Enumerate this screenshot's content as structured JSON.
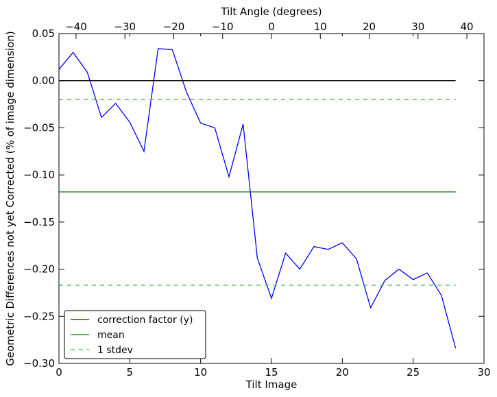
{
  "chart_data": {
    "type": "line",
    "xlabel": "Tilt Image",
    "ylabel": "Geometric Differences not yet Corrected (% of image dimension)",
    "top_xlabel": "Tilt Angle (degrees)",
    "xlim": [
      0,
      30
    ],
    "ylim": [
      -0.3,
      0.05
    ],
    "top_xlim": [
      -43.5,
      43.5
    ],
    "x_ticks": [
      0,
      5,
      10,
      15,
      20,
      25,
      30
    ],
    "x_tick_labels": [
      "0",
      "5",
      "10",
      "15",
      "20",
      "25",
      "30"
    ],
    "y_ticks": [
      0.05,
      0.0,
      -0.05,
      -0.1,
      -0.15,
      -0.2,
      -0.25,
      -0.3
    ],
    "y_tick_labels": [
      "0.05",
      "0.00",
      "−0.05",
      "−0.10",
      "−0.15",
      "−0.20",
      "−0.25",
      "−0.30"
    ],
    "top_ticks": [
      -40,
      -30,
      -20,
      -10,
      0,
      10,
      20,
      30,
      40
    ],
    "top_tick_labels": [
      "−40",
      "−30",
      "−20",
      "−10",
      "0",
      "10",
      "20",
      "30",
      "40"
    ],
    "grid": false,
    "legend_position": "lower-left",
    "series": [
      {
        "name": "correction factor (y)",
        "color": "#0000ff",
        "style": "solid",
        "x": [
          0,
          1,
          2,
          3,
          4,
          5,
          6,
          7,
          8,
          9,
          10,
          11,
          12,
          13,
          14,
          15,
          16,
          17,
          18,
          19,
          20,
          21,
          22,
          23,
          24,
          25,
          26,
          27,
          28
        ],
        "y": [
          0.012,
          0.03,
          0.009,
          -0.039,
          -0.024,
          -0.044,
          -0.075,
          0.034,
          0.033,
          -0.012,
          -0.045,
          -0.05,
          -0.102,
          -0.046,
          -0.188,
          -0.231,
          -0.183,
          -0.2,
          -0.176,
          -0.179,
          -0.172,
          -0.189,
          -0.241,
          -0.212,
          -0.2,
          -0.211,
          -0.204,
          -0.228,
          -0.284
        ]
      },
      {
        "name": "mean",
        "color": "#008000",
        "style": "solid",
        "x": [
          0,
          28
        ],
        "y": [
          -0.118,
          -0.118
        ]
      },
      {
        "name": "1 stdev",
        "color": "#55bb55",
        "style": "dashed",
        "x": [
          0,
          28
        ],
        "y": [
          -0.02,
          -0.02
        ]
      },
      {
        "name": "",
        "color": "#55bb55",
        "style": "dashed",
        "x": [
          0,
          28
        ],
        "y": [
          -0.217,
          -0.217
        ]
      },
      {
        "name": "",
        "color": "#000000",
        "style": "solid",
        "x": [
          0,
          28
        ],
        "y": [
          0.0,
          0.0
        ]
      }
    ],
    "legend": [
      {
        "label": "correction factor (y)",
        "color": "#0000ff",
        "style": "solid"
      },
      {
        "label": "mean",
        "color": "#008000",
        "style": "solid"
      },
      {
        "label": "1 stdev",
        "color": "#55bb55",
        "style": "dashed"
      }
    ]
  }
}
